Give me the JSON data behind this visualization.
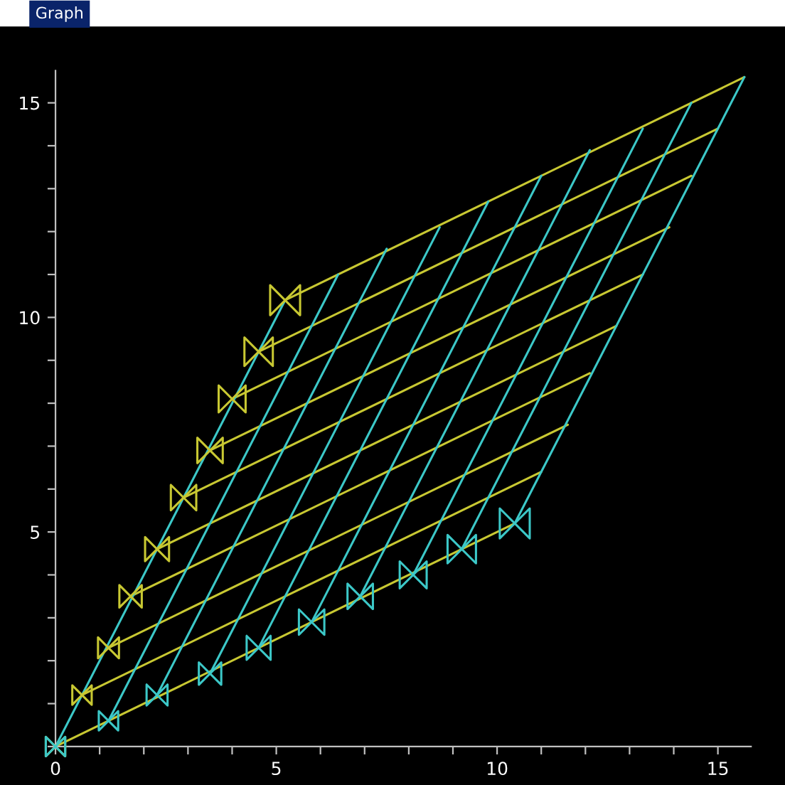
{
  "chart_data": {
    "type": "line",
    "title": "Graph",
    "xlim": [
      0,
      15.75
    ],
    "ylim": [
      0,
      15.75
    ],
    "xticks": [
      0,
      {
        "value": 1,
        "label": null
      },
      {
        "value": 2,
        "label": null
      },
      {
        "value": 3,
        "label": null
      },
      {
        "value": 4,
        "label": null
      },
      5,
      {
        "value": 6,
        "label": null
      },
      {
        "value": 7,
        "label": null
      },
      {
        "value": 8,
        "label": null
      },
      {
        "value": 9,
        "label": null
      },
      10,
      {
        "value": 11,
        "label": null
      },
      {
        "value": 12,
        "label": null
      },
      {
        "value": 13,
        "label": null
      },
      {
        "value": 14,
        "label": null
      },
      15
    ],
    "yticks": [
      {
        "value": 0,
        "label": null
      },
      {
        "value": 1,
        "label": null
      },
      {
        "value": 2,
        "label": null
      },
      {
        "value": 3,
        "label": null
      },
      {
        "value": 4,
        "label": null
      },
      5,
      {
        "value": 6,
        "label": null
      },
      {
        "value": 7,
        "label": null
      },
      {
        "value": 8,
        "label": null
      },
      {
        "value": 9,
        "label": null
      },
      10,
      {
        "value": 11,
        "label": null
      },
      {
        "value": 12,
        "label": null
      },
      {
        "value": 13,
        "label": null
      },
      {
        "value": 14,
        "label": null
      },
      15
    ],
    "grid": false,
    "series": [
      {
        "color": "#c8c832",
        "x": [
          0,
          10.4
        ],
        "values": [
          0,
          5.2
        ]
      },
      {
        "color": "#c8c832",
        "x": [
          0.6,
          11.0
        ],
        "values": [
          1.2,
          6.4
        ]
      },
      {
        "color": "#c8c832",
        "x": [
          1.2,
          11.6
        ],
        "values": [
          2.3,
          7.5
        ]
      },
      {
        "color": "#c8c832",
        "x": [
          1.7,
          12.1
        ],
        "values": [
          3.5,
          8.7
        ]
      },
      {
        "color": "#c8c832",
        "x": [
          2.3,
          12.7
        ],
        "values": [
          4.6,
          9.8
        ]
      },
      {
        "color": "#c8c832",
        "x": [
          2.9,
          13.3
        ],
        "values": [
          5.8,
          11.0
        ]
      },
      {
        "color": "#c8c832",
        "x": [
          3.5,
          13.9
        ],
        "values": [
          6.9,
          12.1
        ]
      },
      {
        "color": "#c8c832",
        "x": [
          4.0,
          14.4
        ],
        "values": [
          8.1,
          13.3
        ]
      },
      {
        "color": "#c8c832",
        "x": [
          4.6,
          15.0
        ],
        "values": [
          9.2,
          14.4
        ]
      },
      {
        "color": "#c8c832",
        "x": [
          5.2,
          15.6
        ],
        "values": [
          10.4,
          15.6
        ]
      },
      {
        "color": "#3cc8c8",
        "x": [
          0,
          5.2
        ],
        "values": [
          0,
          10.4
        ]
      },
      {
        "color": "#3cc8c8",
        "x": [
          1.2,
          6.4
        ],
        "values": [
          0.6,
          11.0
        ]
      },
      {
        "color": "#3cc8c8",
        "x": [
          2.3,
          7.5
        ],
        "values": [
          1.2,
          11.6
        ]
      },
      {
        "color": "#3cc8c8",
        "x": [
          3.5,
          8.7
        ],
        "values": [
          1.7,
          12.1
        ]
      },
      {
        "color": "#3cc8c8",
        "x": [
          4.6,
          9.8
        ],
        "values": [
          2.3,
          12.7
        ]
      },
      {
        "color": "#3cc8c8",
        "x": [
          5.8,
          11.0
        ],
        "values": [
          2.9,
          13.3
        ]
      },
      {
        "color": "#3cc8c8",
        "x": [
          6.9,
          12.1
        ],
        "values": [
          3.5,
          13.9
        ]
      },
      {
        "color": "#3cc8c8",
        "x": [
          8.1,
          13.3
        ],
        "values": [
          4.0,
          14.4
        ]
      },
      {
        "color": "#3cc8c8",
        "x": [
          9.2,
          14.4
        ],
        "values": [
          4.6,
          15.0
        ]
      },
      {
        "color": "#3cc8c8",
        "x": [
          10.4,
          15.6
        ],
        "values": [
          5.2,
          15.6
        ]
      },
      {
        "type": "bubble",
        "color": "#c8c832",
        "x": [
          0,
          0.6,
          1.2,
          1.7,
          2.3,
          2.9,
          3.5,
          4.0,
          4.6,
          5.2
        ],
        "values": [
          0,
          1.2,
          2.3,
          3.5,
          4.6,
          5.8,
          6.9,
          8.1,
          9.2,
          10.4
        ],
        "sizes": [
          0.42,
          0.42,
          0.49,
          0.56,
          0.64,
          0.72,
          0.72,
          0.81,
          0.9,
          1
        ]
      },
      {
        "type": "bubble",
        "color": "#3cc8c8",
        "x": [
          0,
          1.2,
          2.3,
          3.5,
          4.6,
          5.8,
          6.9,
          8.1,
          9.2,
          10.4
        ],
        "values": [
          0,
          0.6,
          1.2,
          1.7,
          2.3,
          2.9,
          3.5,
          4.0,
          4.6,
          5.2
        ],
        "sizes": [
          0.42,
          0.42,
          0.49,
          0.56,
          0.64,
          0.72,
          0.72,
          0.81,
          0.9,
          1
        ]
      }
    ]
  }
}
